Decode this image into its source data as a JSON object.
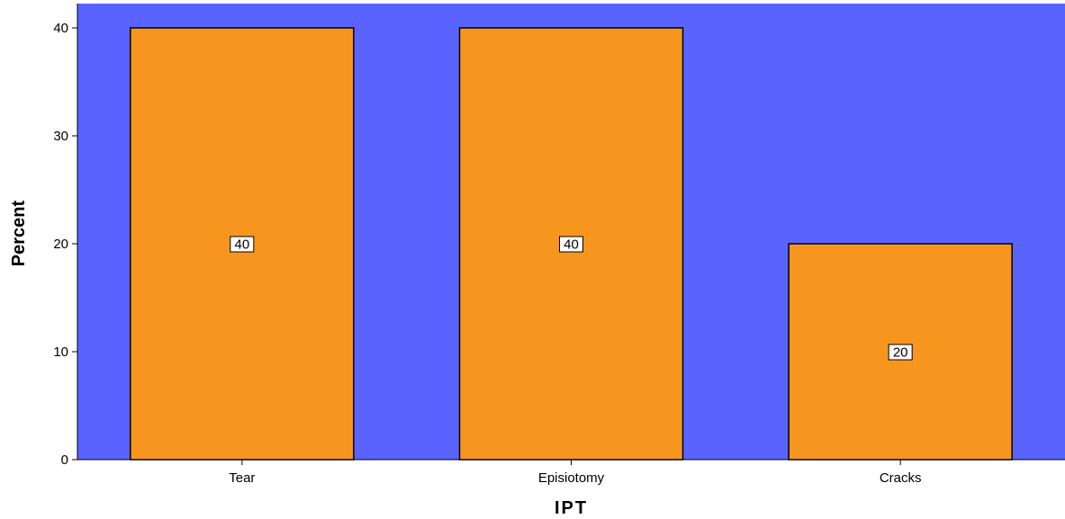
{
  "colors": {
    "plot_background": "#5b63ff",
    "bar_fill": "#f7961e",
    "bar_stroke": "#000000",
    "label_box": "#ffffff"
  },
  "chart_data": {
    "type": "bar",
    "categories": [
      "Tear",
      "Episiotomy",
      "Cracks"
    ],
    "values": [
      40,
      40,
      20
    ],
    "data_labels": [
      "40",
      "40",
      "20"
    ],
    "xlabel": "IPT",
    "ylabel": "Percent",
    "ylim": [
      0,
      40
    ],
    "yticks": [
      0,
      10,
      20,
      30,
      40
    ],
    "grid": false,
    "legend": "none"
  }
}
